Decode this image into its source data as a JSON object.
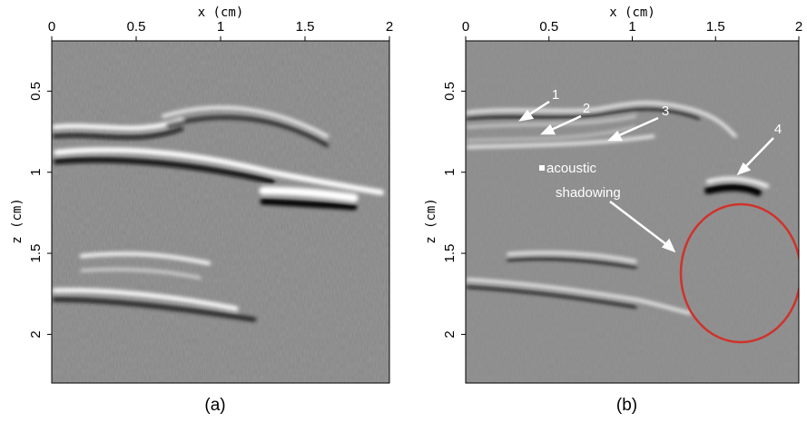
{
  "panels": [
    {
      "caption": "(a)",
      "xlabel": "x (cm)",
      "ylabel": "z (cm)",
      "xlim": [
        0,
        2
      ],
      "ylim": [
        0.19,
        2.3
      ],
      "xticks": [
        0,
        0.5,
        1,
        1.5,
        2
      ],
      "yticks": [
        0.5,
        1,
        1.5,
        2
      ]
    },
    {
      "caption": "(b)",
      "xlabel": "x (cm)",
      "ylabel": "z (cm)",
      "xlim": [
        0,
        2
      ],
      "ylim": [
        0.19,
        2.3
      ],
      "xticks": [
        0,
        0.5,
        1,
        1.5,
        2
      ],
      "yticks": [
        0.5,
        1,
        1.5,
        2
      ],
      "annotations": [
        "1",
        "2",
        "3",
        "4"
      ],
      "note": [
        "acoustic",
        "shadowing"
      ]
    }
  ]
}
